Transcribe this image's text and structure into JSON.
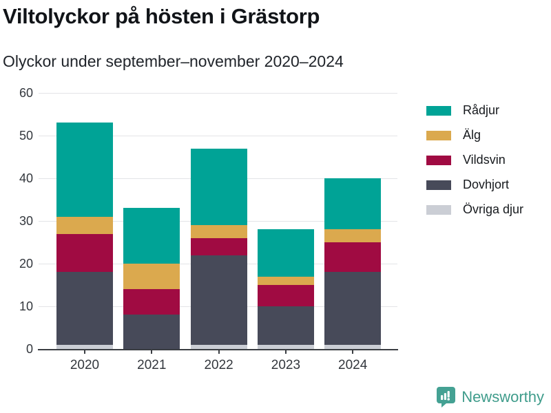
{
  "chart_data": {
    "type": "bar",
    "stacked": true,
    "title": "Viltolyckor på hösten i Grästorp",
    "subtitle": "Olyckor under september–november 2020–2024",
    "categories": [
      "2020",
      "2021",
      "2022",
      "2023",
      "2024"
    ],
    "series": [
      {
        "name": "Övriga djur",
        "color": "#cbced5",
        "values": [
          1,
          0,
          1,
          1,
          1
        ]
      },
      {
        "name": "Dovhjort",
        "color": "#474a59",
        "values": [
          17,
          8,
          21,
          9,
          17
        ]
      },
      {
        "name": "Vildsvin",
        "color": "#a00b42",
        "values": [
          9,
          6,
          4,
          5,
          7
        ]
      },
      {
        "name": "Älg",
        "color": "#dba94e",
        "values": [
          4,
          6,
          3,
          2,
          3
        ]
      },
      {
        "name": "Rådjur",
        "color": "#00a396",
        "values": [
          22,
          13,
          18,
          11,
          12
        ]
      }
    ],
    "totals": [
      53,
      33,
      47,
      28,
      40
    ],
    "legend_order": [
      "Rådjur",
      "Älg",
      "Vildsvin",
      "Dovhjort",
      "Övriga djur"
    ],
    "legend_position": "right",
    "y_ticks": [
      0,
      10,
      20,
      30,
      40,
      50,
      60
    ],
    "ylim": [
      0,
      60
    ],
    "xlabel": "",
    "ylabel": "",
    "grid": true
  },
  "footer": {
    "brand": "Newsworthy"
  },
  "colors": {
    "background": "#ffffff",
    "grid": "#e3e4e7",
    "axis": "#3a3d42",
    "text": "#33373d",
    "title": "#111418",
    "brand_teal": "#3f9c8b",
    "brand_icon": "#44a193"
  }
}
